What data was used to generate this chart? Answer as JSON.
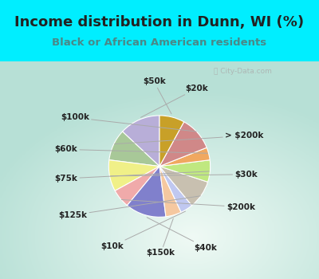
{
  "title": "Income distribution in Dunn, WI (%)",
  "subtitle": "Black or African American residents",
  "bg_cyan": "#00eeff",
  "bg_inner_tl": "#e0f5e8",
  "bg_inner_br": "#d0eee0",
  "labels": [
    "$20k",
    "> $200k",
    "$30k",
    "$200k",
    "$40k",
    "$150k",
    "$10k",
    "$125k",
    "$75k",
    "$60k",
    "$100k",
    "$50k"
  ],
  "values": [
    13,
    10,
    10,
    6,
    13,
    5,
    4,
    9,
    7,
    4,
    11,
    8
  ],
  "colors": [
    "#b8aed8",
    "#a8c898",
    "#f0f088",
    "#f0aaaa",
    "#8080cc",
    "#f5c8a0",
    "#c0c8f0",
    "#c8c0b0",
    "#c0e880",
    "#f0a860",
    "#d08888",
    "#c8a028"
  ],
  "title_fontsize": 13,
  "subtitle_fontsize": 9.5,
  "startangle": 90,
  "label_fontsize": 7.5
}
